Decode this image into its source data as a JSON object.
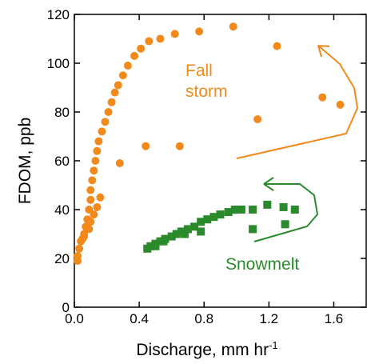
{
  "chart_data": {
    "type": "scatter",
    "xlabel": "Discharge, mm hr",
    "xlabel_superscript": "-1",
    "ylabel": "FDOM, ppb",
    "xlim": [
      0,
      1.8
    ],
    "ylim": [
      0,
      120
    ],
    "xticks": [
      {
        "value": 0,
        "label": "0.0"
      },
      {
        "value": 0.4,
        "label": "0.4"
      },
      {
        "value": 0.8,
        "label": "0.8"
      },
      {
        "value": 1.2,
        "label": "1.2"
      },
      {
        "value": 1.6,
        "label": "1.6"
      }
    ],
    "yticks": [
      0,
      20,
      40,
      60,
      80,
      100,
      120
    ],
    "series": [
      {
        "name": "Fall storm",
        "color": "#f28a1b",
        "marker": "circle",
        "x": [
          0.02,
          0.02,
          0.03,
          0.04,
          0.05,
          0.06,
          0.07,
          0.08,
          0.09,
          0.1,
          0.1,
          0.11,
          0.12,
          0.13,
          0.14,
          0.15,
          0.17,
          0.19,
          0.21,
          0.23,
          0.25,
          0.27,
          0.3,
          0.33,
          0.37,
          0.41,
          0.46,
          0.53,
          0.62,
          0.77,
          0.98,
          1.25,
          1.53,
          1.64,
          1.13,
          0.44,
          0.65,
          0.28,
          0.16,
          0.14,
          0.12,
          0.1,
          0.09,
          0.06,
          0.05
        ],
        "values": [
          19,
          21,
          24,
          27,
          28,
          30,
          33,
          36,
          40,
          44,
          48,
          52,
          56,
          60,
          64,
          68,
          72,
          76,
          80,
          84,
          88,
          91,
          95,
          99,
          103,
          106,
          109,
          110,
          112,
          113,
          115,
          107,
          86,
          83,
          77,
          66,
          66,
          59,
          45,
          41,
          38,
          35,
          32,
          29,
          28
        ]
      },
      {
        "name": "Snowmelt",
        "color": "#2b8a2b",
        "marker": "square",
        "x": [
          0.45,
          0.47,
          0.5,
          0.53,
          0.56,
          0.6,
          0.63,
          0.66,
          0.7,
          0.74,
          0.78,
          0.82,
          0.86,
          0.9,
          0.95,
          0.99,
          1.03,
          1.1,
          1.19,
          1.29,
          1.36,
          1.3,
          1.1,
          0.78,
          0.68,
          0.55,
          0.5
        ],
        "values": [
          24,
          25,
          26,
          27,
          28,
          29,
          30,
          31,
          32,
          33,
          35,
          36,
          37,
          38,
          39,
          40,
          40,
          40,
          42,
          41,
          40,
          34,
          32,
          31,
          30,
          27,
          25
        ]
      }
    ]
  }
}
